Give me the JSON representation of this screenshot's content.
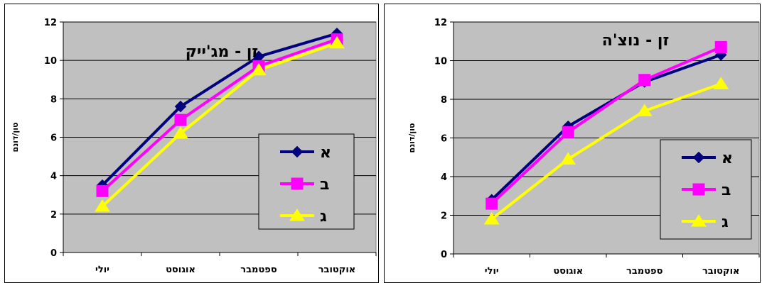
{
  "colors": {
    "plot_bg": "#c0c0c0",
    "grid": "#000000"
  },
  "chart_data": [
    {
      "type": "line",
      "title": "זן - מג'ייק",
      "ylabel": "טון/דונם",
      "xlabel": "",
      "categories": [
        "יולי",
        "אוגוסט",
        "ספטמבר",
        "אוקטובר"
      ],
      "ylim": [
        0,
        12
      ],
      "yticks": [
        0,
        2,
        4,
        6,
        8,
        10,
        12
      ],
      "grid": true,
      "legend": "right",
      "series": [
        {
          "name": "א",
          "values": [
            3.5,
            7.6,
            10.2,
            11.4
          ],
          "color": "#000080",
          "marker": "diamond"
        },
        {
          "name": "ב",
          "values": [
            3.2,
            6.9,
            9.7,
            11.1
          ],
          "color": "#ff00ff",
          "marker": "square"
        },
        {
          "name": "ג",
          "values": [
            2.4,
            6.2,
            9.5,
            10.9
          ],
          "color": "#ffff00",
          "marker": "triangle"
        }
      ]
    },
    {
      "type": "line",
      "title": "זן - נוצ'ה",
      "ylabel": "טון/דונם",
      "xlabel": "",
      "categories": [
        "יולי",
        "אוגוסט",
        "ספטמבר",
        "אוקטובר"
      ],
      "ylim": [
        0,
        12
      ],
      "yticks": [
        0,
        2,
        4,
        6,
        8,
        10,
        12
      ],
      "grid": true,
      "legend": "right",
      "series": [
        {
          "name": "א",
          "values": [
            2.8,
            6.6,
            8.9,
            10.3
          ],
          "color": "#000080",
          "marker": "diamond"
        },
        {
          "name": "ב",
          "values": [
            2.6,
            6.3,
            9.0,
            10.7
          ],
          "color": "#ff00ff",
          "marker": "square"
        },
        {
          "name": "ג",
          "values": [
            1.8,
            4.9,
            7.4,
            8.8
          ],
          "color": "#ffff00",
          "marker": "triangle"
        }
      ]
    }
  ]
}
